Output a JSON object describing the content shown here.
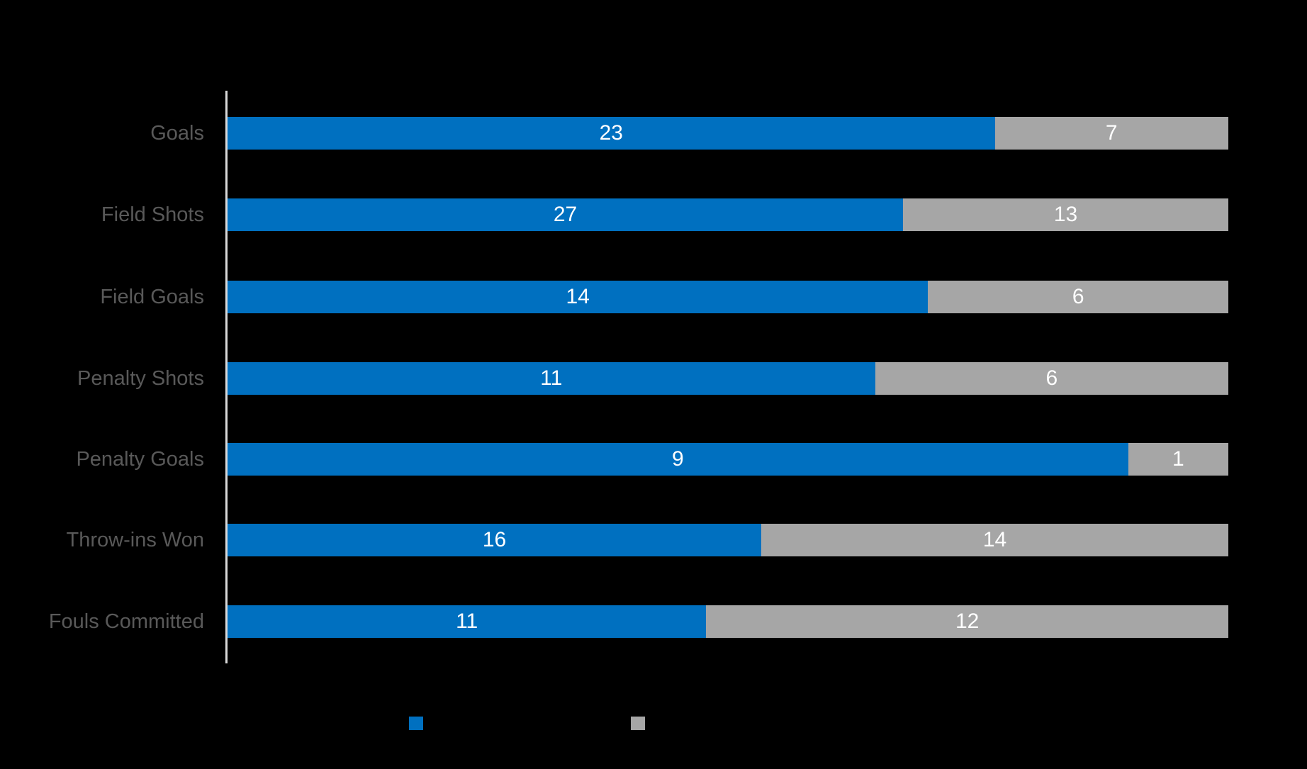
{
  "chart": {
    "background": "#000000",
    "axis_color": "#D9D9D9",
    "category_label_color": "#595959",
    "value_label_color": "#FFFFFF"
  },
  "chart_data": {
    "type": "bar",
    "subtype": "horizontal-100pct-stacked",
    "title": "",
    "categories": [
      "Goals",
      "Field Shots",
      "Field Goals",
      "Penalty Shots",
      "Penalty Goals",
      "Throw-ins Won",
      "Fouls Committed"
    ],
    "series": [
      {
        "name": "blue",
        "color": "#0070C0",
        "values": [
          23,
          27,
          14,
          11,
          9,
          16,
          11
        ]
      },
      {
        "name": "gray",
        "color": "#A6A6A6",
        "values": [
          7,
          13,
          6,
          6,
          1,
          14,
          12
        ]
      }
    ],
    "value_labels": "centered inside each segment",
    "grid": false,
    "legend": {
      "position": "bottom",
      "labels_visible": false,
      "swatches": [
        {
          "color": "#0070C0"
        },
        {
          "color": "#A6A6A6"
        }
      ]
    }
  }
}
